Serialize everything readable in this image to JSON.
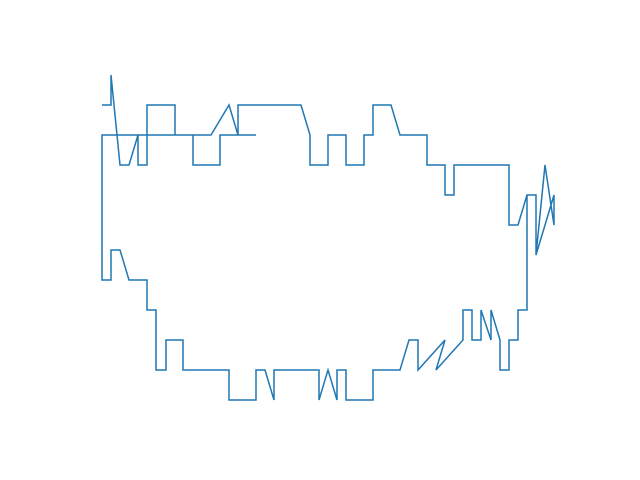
{
  "chart_data": {
    "type": "line",
    "title": "",
    "xlabel": "",
    "ylabel": "",
    "axes_visible": false,
    "grid": false,
    "legend": "none",
    "xlim": [
      100,
      556
    ],
    "ylim": [
      0,
      350
    ],
    "color": "#1f77b4",
    "series": [
      {
        "x": [
          102,
          111,
          111,
          120,
          129,
          138,
          138,
          147,
          147,
          175,
          175,
          193,
          193,
          220,
          220,
          238,
          238,
          301,
          310,
          310,
          328,
          328,
          346,
          346,
          364,
          364,
          373,
          373,
          391,
          400,
          427,
          427,
          445,
          445,
          454,
          454,
          509,
          509,
          518,
          527,
          536,
          536,
          545,
          554,
          554,
          545,
          536,
          536,
          527,
          527,
          518,
          518,
          509,
          509,
          500,
          500,
          491,
          491,
          481,
          481,
          472,
          472,
          463,
          463,
          436,
          445,
          418,
          418,
          409,
          400,
          373,
          373,
          346,
          346,
          337,
          337,
          328,
          319,
          319,
          274,
          274,
          265,
          256,
          256,
          229,
          229,
          183,
          183,
          166,
          166,
          156,
          156,
          147,
          147,
          129,
          120,
          111,
          111,
          102,
          102,
          193,
          211,
          229,
          238,
          247,
          256
        ],
        "y": [
          305,
          305,
          335,
          245,
          245,
          275,
          245,
          245,
          305,
          305,
          275,
          275,
          245,
          245,
          275,
          275,
          305,
          305,
          275,
          245,
          245,
          275,
          275,
          245,
          245,
          275,
          275,
          305,
          305,
          275,
          275,
          245,
          245,
          215,
          215,
          245,
          245,
          185,
          185,
          215,
          215,
          155,
          245,
          185,
          215,
          185,
          155,
          215,
          215,
          100,
          100,
          70,
          70,
          40,
          40,
          70,
          100,
          70,
          100,
          70,
          70,
          100,
          100,
          70,
          40,
          70,
          40,
          70,
          70,
          40,
          40,
          10,
          10,
          40,
          40,
          10,
          40,
          10,
          40,
          40,
          10,
          40,
          40,
          10,
          10,
          40,
          40,
          70,
          70,
          40,
          40,
          100,
          100,
          130,
          130,
          160,
          160,
          130,
          130,
          275,
          275,
          275,
          305,
          275,
          275,
          275
        ]
      }
    ]
  }
}
